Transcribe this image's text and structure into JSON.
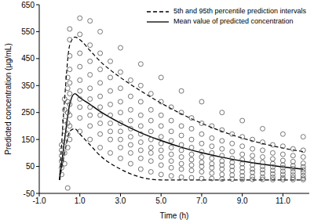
{
  "chart_data": {
    "type": "scatter",
    "x_label": "Time (h)",
    "y_label": "Predicted concentration (μg/mL)",
    "xlim": [
      -1,
      12.3
    ],
    "xticks": [
      {
        "value": -1,
        "label": "-1.0"
      },
      {
        "value": 1,
        "label": "1.0"
      },
      {
        "value": 3,
        "label": "3.0"
      },
      {
        "value": 5,
        "label": "5.0"
      },
      {
        "value": 7,
        "label": "7.0"
      },
      {
        "value": 9,
        "label": "9.0"
      },
      {
        "value": 11,
        "label": "11.0"
      }
    ],
    "ylim": [
      -50,
      650
    ],
    "yticks": [
      -50,
      50,
      150,
      250,
      350,
      450,
      550,
      650
    ],
    "legend": "upper right",
    "series": [
      {
        "type": "scatter",
        "marker": "circle",
        "color": "#555555",
        "x": [
          0.1,
          0.1,
          0.1,
          0.1,
          0.1,
          0.1,
          0.25,
          0.25,
          0.25,
          0.25,
          0.25,
          0.25,
          0.25,
          0.4,
          0.4,
          0.4,
          0.4,
          0.4,
          0.4,
          0.4,
          0.4,
          0.5,
          0.5,
          0.5,
          0.5,
          0.5,
          0.5,
          0.5,
          0.5,
          0.5,
          0.5,
          1,
          1,
          1,
          1,
          1,
          1,
          1,
          1,
          1,
          1,
          1.5,
          1.5,
          1.5,
          1.5,
          1.5,
          1.5,
          1.5,
          1.5,
          1.5,
          1.5,
          2,
          2,
          2,
          2,
          2,
          2,
          2,
          2,
          2,
          2,
          2.5,
          2.5,
          2.5,
          2.5,
          2.5,
          2.5,
          2.5,
          2.5,
          2.5,
          3,
          3,
          3,
          3,
          3,
          3,
          3,
          3,
          3,
          3,
          3.5,
          3.5,
          3.5,
          3.5,
          3.5,
          3.5,
          3.5,
          3.5,
          3.5,
          4,
          4,
          4,
          4,
          4,
          4,
          4,
          4,
          4,
          4,
          4.5,
          4.5,
          4.5,
          4.5,
          4.5,
          4.5,
          4.5,
          4.5,
          4.5,
          5,
          5,
          5,
          5,
          5,
          5,
          5,
          5,
          5,
          5,
          5.5,
          5.5,
          5.5,
          5.5,
          5.5,
          5.5,
          5.5,
          5.5,
          5.5,
          6,
          6,
          6,
          6,
          6,
          6,
          6,
          6,
          6,
          6,
          6.5,
          6.5,
          6.5,
          6.5,
          6.5,
          6.5,
          6.5,
          6.5,
          6.5,
          7,
          7,
          7,
          7,
          7,
          7,
          7,
          7,
          7,
          7,
          7.5,
          7.5,
          7.5,
          7.5,
          7.5,
          7.5,
          7.5,
          7.5,
          7.5,
          8,
          8,
          8,
          8,
          8,
          8,
          8,
          8,
          8,
          8,
          8.5,
          8.5,
          8.5,
          8.5,
          8.5,
          8.5,
          8.5,
          8.5,
          8.5,
          9,
          9,
          9,
          9,
          9,
          9,
          9,
          9,
          9,
          9,
          9.5,
          9.5,
          9.5,
          9.5,
          9.5,
          9.5,
          9.5,
          9.5,
          9.5,
          10,
          10,
          10,
          10,
          10,
          10,
          10,
          10,
          10,
          10,
          10.5,
          10.5,
          10.5,
          10.5,
          10.5,
          10.5,
          10.5,
          10.5,
          10.5,
          11,
          11,
          11,
          11,
          11,
          11,
          11,
          11,
          11,
          11,
          11.5,
          11.5,
          11.5,
          11.5,
          11.5,
          11.5,
          11.5,
          11.5,
          11.5,
          12,
          12,
          12,
          12,
          12,
          12,
          12,
          12,
          12,
          12
        ],
        "values": [
          20,
          45,
          70,
          90,
          110,
          130,
          60,
          100,
          140,
          180,
          220,
          260,
          300,
          -30,
          120,
          170,
          210,
          250,
          290,
          340,
          380,
          150,
          200,
          240,
          280,
          320,
          360,
          410,
          460,
          520,
          560,
          180,
          230,
          270,
          300,
          330,
          370,
          420,
          470,
          540,
          600,
          150,
          200,
          240,
          270,
          300,
          340,
          390,
          440,
          500,
          590,
          120,
          170,
          210,
          240,
          270,
          310,
          360,
          410,
          470,
          550,
          100,
          150,
          180,
          210,
          240,
          280,
          330,
          380,
          440,
          80,
          120,
          150,
          180,
          210,
          250,
          290,
          340,
          400,
          490,
          60,
          100,
          130,
          160,
          190,
          220,
          260,
          310,
          370,
          40,
          80,
          110,
          140,
          170,
          200,
          240,
          290,
          350,
          430,
          30,
          70,
          100,
          120,
          150,
          180,
          220,
          260,
          320,
          20,
          55,
          85,
          110,
          135,
          160,
          200,
          240,
          290,
          380,
          15,
          45,
          70,
          95,
          120,
          145,
          180,
          220,
          270,
          10,
          40,
          60,
          85,
          110,
          130,
          165,
          200,
          250,
          330,
          8,
          35,
          55,
          75,
          95,
          120,
          150,
          190,
          230,
          5,
          30,
          50,
          65,
          85,
          105,
          135,
          170,
          210,
          290,
          5,
          25,
          45,
          60,
          80,
          100,
          125,
          155,
          200,
          3,
          20,
          40,
          55,
          70,
          90,
          115,
          145,
          185,
          250,
          3,
          18,
          35,
          50,
          65,
          80,
          105,
          135,
          170,
          2,
          15,
          30,
          45,
          60,
          75,
          95,
          125,
          160,
          220,
          2,
          12,
          28,
          40,
          55,
          70,
          90,
          115,
          150,
          2,
          10,
          25,
          38,
          50,
          65,
          85,
          110,
          140,
          190,
          1,
          10,
          22,
          35,
          48,
          60,
          78,
          100,
          130,
          1,
          8,
          20,
          32,
          45,
          55,
          72,
          95,
          125,
          170,
          1,
          8,
          18,
          30,
          42,
          52,
          68,
          90,
          115,
          1,
          6,
          16,
          28,
          38,
          48,
          62,
          85,
          110,
          160
        ]
      },
      {
        "name": "5th and 95th percentile prediction intervals",
        "type": "band",
        "line_style": "dashed",
        "color": "#000000",
        "x": [
          0,
          0.25,
          0.5,
          0.75,
          1,
          1.5,
          2,
          3,
          4,
          5,
          6,
          7,
          8,
          9,
          10,
          11,
          12
        ],
        "upper": [
          0,
          300,
          500,
          530,
          520,
          480,
          440,
          380,
          330,
          285,
          245,
          210,
          180,
          155,
          135,
          118,
          105
        ],
        "lower": [
          0,
          100,
          180,
          190,
          170,
          130,
          90,
          40,
          10,
          0,
          0,
          0,
          0,
          0,
          0,
          0,
          0
        ]
      },
      {
        "name": "Mean value of predicted concentration",
        "type": "line",
        "line_style": "solid",
        "color": "#000000",
        "x": [
          0,
          0.25,
          0.5,
          0.75,
          1,
          1.5,
          2,
          3,
          4,
          5,
          6,
          7,
          8,
          9,
          10,
          11,
          12
        ],
        "values": [
          0,
          150,
          280,
          320,
          305,
          280,
          254,
          211,
          175,
          146,
          121,
          101,
          84,
          70,
          58,
          48,
          40
        ]
      }
    ]
  }
}
